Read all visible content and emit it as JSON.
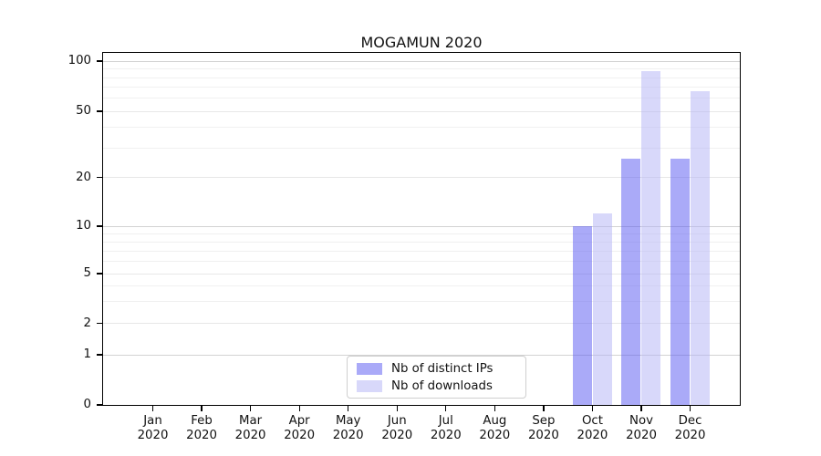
{
  "chart_data": {
    "type": "bar",
    "title": "MOGAMUN 2020",
    "categories": [
      "Jan 2020",
      "Feb 2020",
      "Mar 2020",
      "Apr 2020",
      "May 2020",
      "Jun 2020",
      "Jul 2020",
      "Aug 2020",
      "Sep 2020",
      "Oct 2020",
      "Nov 2020",
      "Dec 2020"
    ],
    "series": [
      {
        "name": "Nb of distinct IPs",
        "color": "rgba(85,85,241,0.5)",
        "values": [
          0,
          0,
          0,
          0,
          0,
          0,
          0,
          0,
          0,
          10,
          26,
          26
        ]
      },
      {
        "name": "Nb of downloads",
        "color": "rgba(177,177,245,0.5)",
        "values": [
          0,
          0,
          0,
          0,
          0,
          0,
          0,
          0,
          0,
          12,
          87,
          66
        ]
      }
    ],
    "xlabel": "",
    "ylabel": "",
    "yscale": "symlog",
    "yticks": [
      100,
      50,
      20,
      10,
      5,
      2,
      1,
      0
    ],
    "ylim": [
      0,
      110
    ],
    "grid": true,
    "legend_position": "lower center"
  }
}
